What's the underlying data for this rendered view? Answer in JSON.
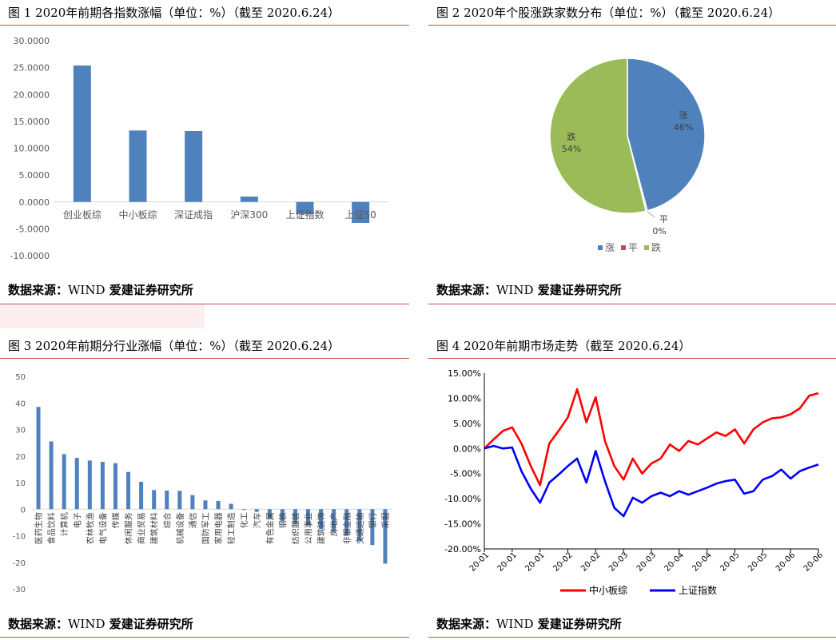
{
  "figures": [
    {
      "title": "图 1 2020年前期各指数涨幅（单位：%）（截至 2020.6.24）",
      "source_label": "数据来源：",
      "source_mono": "WIND",
      "source_rest": "爱建证券研究所"
    },
    {
      "title": "图 2 2020年个股涨跌家数分布（单位：%）（截至 2020.6.24）",
      "source_label": "数据来源：",
      "source_mono": "WIND",
      "source_rest": "爱建证券研究所"
    },
    {
      "title": "图 3 2020年前期分行业涨幅（单位：%）（截至 2020.6.24）",
      "source_label": "数据来源：",
      "source_mono": "WIND",
      "source_rest": "爱建证券研究所"
    },
    {
      "title": "图 4 2020年前期市场走势（截至 2020.6.24）",
      "source_label": "数据来源：",
      "source_mono": "WIND",
      "source_rest": "爱建证券研究所"
    }
  ],
  "chart_data": [
    {
      "type": "bar",
      "categories": [
        "创业板综",
        "中小板综",
        "深证成指",
        "沪深300",
        "上证指数",
        "上证50"
      ],
      "values": [
        25.4,
        13.3,
        13.2,
        1.0,
        -2.3,
        -3.9
      ],
      "ylim": [
        -10,
        30
      ],
      "yticks": [
        "30.0000",
        "25.0000",
        "20.0000",
        "15.0000",
        "10.0000",
        "5.0000",
        "0.0000",
        "-5.0000",
        "-10.0000"
      ],
      "color": "#4f81bd",
      "grid": false
    },
    {
      "type": "pie",
      "slices": [
        {
          "name": "涨",
          "value": 46,
          "label": "46%",
          "color": "#4f81bd"
        },
        {
          "name": "平",
          "value": 0.3,
          "label": "0%",
          "color": "#c0504d"
        },
        {
          "name": "跌",
          "value": 54,
          "label": "54%",
          "color": "#9bbb59"
        }
      ],
      "legend": [
        "涨",
        "平",
        "跌"
      ],
      "legend_position": "bottom"
    },
    {
      "type": "bar",
      "categories": [
        "医药生物",
        "食品饮料",
        "计算机",
        "电子",
        "农林牧渔",
        "电气设备",
        "传媒",
        "休闲服务",
        "商业贸易",
        "建筑材料",
        "综合",
        "机械设备",
        "通信",
        "国防军工",
        "家用电器",
        "轻工制造",
        "化工",
        "汽车",
        "有色金属",
        "钢铁",
        "纺织服装",
        "公用事业",
        "建筑装饰",
        "房地产",
        "非银金融",
        "交通运输",
        "银行",
        "采掘"
      ],
      "values": [
        38.5,
        25.5,
        20.7,
        19.3,
        18.3,
        17.8,
        17.3,
        14.0,
        10.3,
        7.2,
        7.0,
        6.9,
        5.3,
        3.3,
        3.1,
        2.0,
        -0.2,
        -1.0,
        -3.5,
        -4.5,
        -5.5,
        -6.0,
        -7.5,
        -8.5,
        -10.0,
        -12.0,
        -13.5,
        -20.5
      ],
      "ylim": [
        -30,
        50
      ],
      "yticks": [
        "50",
        "40",
        "30",
        "20",
        "10",
        "0",
        "-10",
        "-20",
        "-30"
      ],
      "color": "#4f81bd",
      "grid": false
    },
    {
      "type": "line",
      "x_tick_labels": [
        "20-01",
        "20-01",
        "20-01",
        "20-02",
        "20-02",
        "20-03",
        "20-03",
        "20-04",
        "20-04",
        "20-05",
        "20-05",
        "20-06",
        "20-06"
      ],
      "ylim": [
        -20,
        15
      ],
      "yticks": [
        "15.00%",
        "10.00%",
        "5.00%",
        "0.00%",
        "-5.00%",
        "-10.00%",
        "-15.00%",
        "-20.00%"
      ],
      "series": [
        {
          "name": "中小板综",
          "color": "#ff0000",
          "values": [
            0.0,
            1.8,
            3.5,
            4.2,
            1.0,
            -3.5,
            -7.3,
            1.0,
            3.5,
            6.2,
            11.8,
            5.2,
            10.2,
            1.5,
            -3.5,
            -6.2,
            -2.0,
            -5.0,
            -3.0,
            -2.0,
            0.8,
            -0.5,
            1.5,
            0.8,
            2.0,
            3.2,
            2.5,
            3.8,
            1.0,
            3.8,
            5.2,
            6.0,
            6.2,
            6.8,
            8.0,
            10.5,
            11.0
          ]
        },
        {
          "name": "上证指数",
          "color": "#0000ff",
          "values": [
            0.0,
            0.5,
            0.0,
            0.2,
            -4.5,
            -8.0,
            -10.8,
            -6.8,
            -5.2,
            -3.5,
            -2.0,
            -6.8,
            -0.5,
            -6.5,
            -11.8,
            -13.5,
            -9.8,
            -10.8,
            -9.5,
            -8.8,
            -9.5,
            -8.5,
            -9.2,
            -8.5,
            -7.8,
            -7.0,
            -6.5,
            -6.2,
            -9.0,
            -8.5,
            -6.2,
            -5.5,
            -4.2,
            -6.0,
            -4.5,
            -3.8,
            -3.2
          ]
        }
      ],
      "legend_position": "bottom"
    }
  ]
}
